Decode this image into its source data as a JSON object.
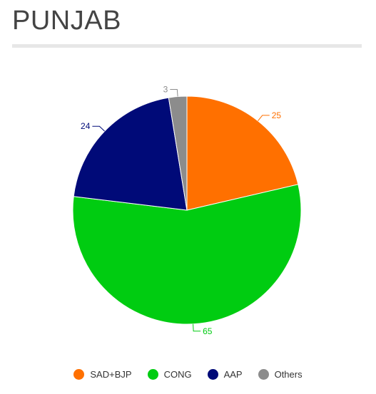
{
  "page": {
    "title": "PUNJAB"
  },
  "chart_data": {
    "type": "pie",
    "categories": [
      "SAD+BJP",
      "CONG",
      "AAP",
      "Others"
    ],
    "values": [
      25,
      65,
      24,
      3
    ],
    "colors": [
      "#ff7000",
      "#00cc11",
      "#000a78",
      "#8c8c8c"
    ],
    "start_angle_deg": 0,
    "direction": "clockwise",
    "data_labels": true,
    "legend_position": "bottom-center"
  }
}
